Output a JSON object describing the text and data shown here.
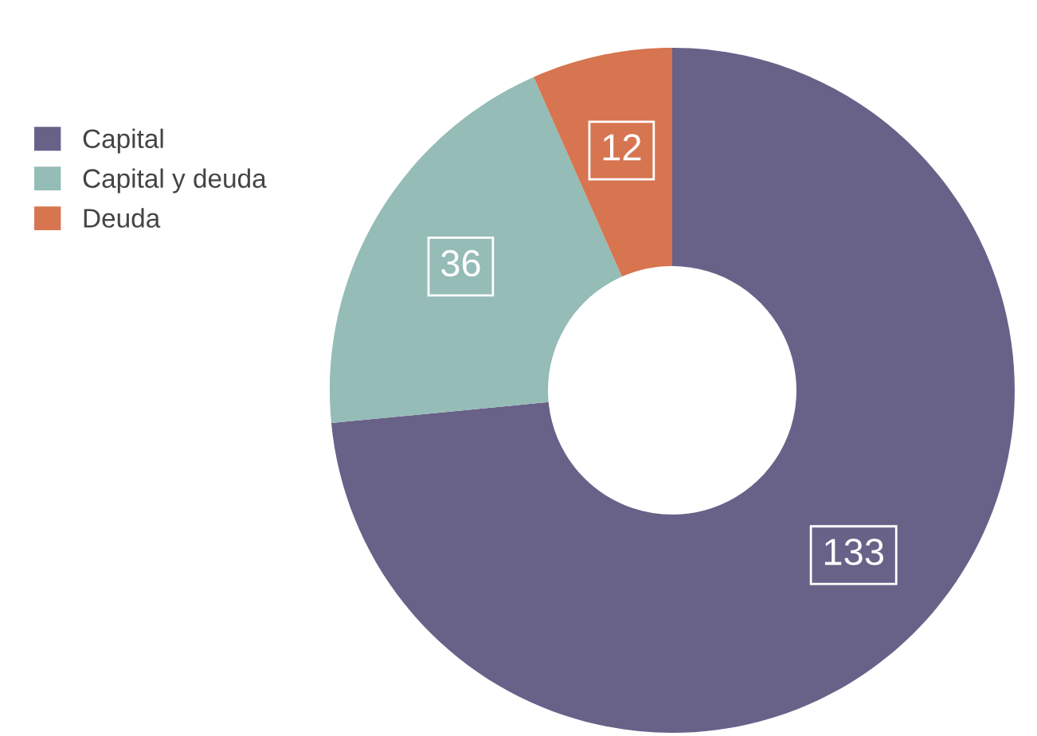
{
  "chart_data": {
    "type": "donut",
    "categories": [
      "Capital",
      "Capital y deuda",
      "Deuda"
    ],
    "values": [
      133,
      36,
      12
    ],
    "colors": [
      "#686188",
      "#95bcb7",
      "#d67550"
    ],
    "data_labels": true,
    "legend": "top left"
  }
}
